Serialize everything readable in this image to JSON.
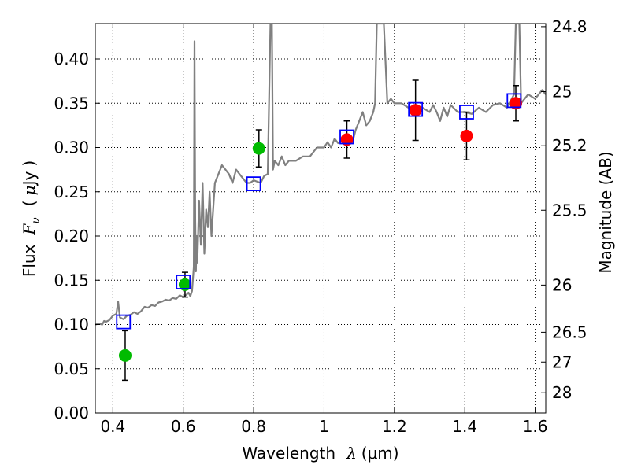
{
  "chart_data": {
    "type": "scatter",
    "xlabel": "Wavelength λ (μm)",
    "xlabel_parts": {
      "text": "Wavelength",
      "symbol": "λ",
      "unit": "(μm)"
    },
    "ylabel": "Flux F_ν (μJy)",
    "ylabel_parts": {
      "text": "Flux",
      "symbol": "F",
      "subscript": "ν",
      "unit_open": "(",
      "unit_mu": "μ",
      "unit_rest": "Jy",
      "unit_close": ")"
    },
    "y2label": "Magnitude (AB)",
    "xlim": [
      0.35,
      1.63
    ],
    "ylim": [
      0.0,
      0.44
    ],
    "grid": true,
    "grid_style": "dotted",
    "x_ticks": [
      {
        "value": 0.4,
        "label": "0.4"
      },
      {
        "value": 0.6,
        "label": "0.6"
      },
      {
        "value": 0.8,
        "label": "0.8"
      },
      {
        "value": 1.0,
        "label": "1"
      },
      {
        "value": 1.2,
        "label": "1.2"
      },
      {
        "value": 1.4,
        "label": "1.4"
      },
      {
        "value": 1.6,
        "label": "1.6"
      }
    ],
    "y_ticks": [
      {
        "value": 0.0,
        "label": "0.00"
      },
      {
        "value": 0.05,
        "label": "0.05"
      },
      {
        "value": 0.1,
        "label": "0.10"
      },
      {
        "value": 0.15,
        "label": "0.15"
      },
      {
        "value": 0.2,
        "label": "0.20"
      },
      {
        "value": 0.25,
        "label": "0.25"
      },
      {
        "value": 0.3,
        "label": "0.30"
      },
      {
        "value": 0.35,
        "label": "0.35"
      },
      {
        "value": 0.4,
        "label": "0.40"
      }
    ],
    "y2_ticks": [
      {
        "mag": 24.8,
        "label": "24.8"
      },
      {
        "mag": 25.0,
        "label": "25"
      },
      {
        "mag": 25.2,
        "label": "25.2"
      },
      {
        "mag": 25.5,
        "label": "25.5"
      },
      {
        "mag": 26.0,
        "label": "26"
      },
      {
        "mag": 26.5,
        "label": "26.5"
      },
      {
        "mag": 27.0,
        "label": "27"
      },
      {
        "mag": 28.0,
        "label": "28"
      }
    ],
    "model_spectrum": {
      "color": "#808080",
      "x": [
        0.35,
        0.36,
        0.37,
        0.375,
        0.38,
        0.39,
        0.4,
        0.41,
        0.415,
        0.42,
        0.43,
        0.44,
        0.45,
        0.46,
        0.47,
        0.48,
        0.49,
        0.5,
        0.51,
        0.52,
        0.53,
        0.54,
        0.55,
        0.56,
        0.57,
        0.58,
        0.59,
        0.6,
        0.61,
        0.615,
        0.62,
        0.625,
        0.63,
        0.632,
        0.634,
        0.636,
        0.638,
        0.64,
        0.645,
        0.65,
        0.655,
        0.66,
        0.665,
        0.67,
        0.675,
        0.68,
        0.685,
        0.69,
        0.7,
        0.71,
        0.72,
        0.73,
        0.74,
        0.75,
        0.76,
        0.77,
        0.78,
        0.79,
        0.8,
        0.82,
        0.83,
        0.84,
        0.848,
        0.85,
        0.852,
        0.855,
        0.86,
        0.87,
        0.88,
        0.89,
        0.9,
        0.92,
        0.94,
        0.96,
        0.98,
        1.0,
        1.01,
        1.02,
        1.03,
        1.04,
        1.06,
        1.08,
        1.09,
        1.1,
        1.11,
        1.12,
        1.13,
        1.14,
        1.145,
        1.15,
        1.16,
        1.17,
        1.18,
        1.19,
        1.2,
        1.22,
        1.24,
        1.26,
        1.28,
        1.3,
        1.31,
        1.32,
        1.33,
        1.34,
        1.35,
        1.36,
        1.38,
        1.4,
        1.42,
        1.44,
        1.46,
        1.48,
        1.5,
        1.52,
        1.54,
        1.545,
        1.55,
        1.555,
        1.56,
        1.57,
        1.58,
        1.6,
        1.62,
        1.63
      ],
      "y": [
        0.1,
        0.101,
        0.1,
        0.104,
        0.103,
        0.105,
        0.11,
        0.112,
        0.126,
        0.108,
        0.106,
        0.11,
        0.111,
        0.114,
        0.112,
        0.115,
        0.12,
        0.119,
        0.122,
        0.121,
        0.125,
        0.126,
        0.128,
        0.127,
        0.13,
        0.129,
        0.133,
        0.131,
        0.134,
        0.136,
        0.132,
        0.138,
        0.165,
        0.42,
        0.22,
        0.16,
        0.2,
        0.17,
        0.24,
        0.19,
        0.26,
        0.18,
        0.23,
        0.21,
        0.25,
        0.2,
        0.23,
        0.26,
        0.27,
        0.28,
        0.275,
        0.27,
        0.26,
        0.275,
        0.27,
        0.265,
        0.26,
        0.26,
        0.263,
        0.26,
        0.268,
        0.27,
        0.44,
        0.44,
        0.44,
        0.275,
        0.285,
        0.28,
        0.29,
        0.28,
        0.285,
        0.285,
        0.29,
        0.29,
        0.3,
        0.3,
        0.306,
        0.3,
        0.31,
        0.305,
        0.312,
        0.305,
        0.32,
        0.33,
        0.34,
        0.325,
        0.33,
        0.34,
        0.35,
        0.44,
        0.44,
        0.44,
        0.35,
        0.355,
        0.35,
        0.35,
        0.345,
        0.348,
        0.345,
        0.34,
        0.348,
        0.34,
        0.33,
        0.345,
        0.335,
        0.348,
        0.34,
        0.34,
        0.338,
        0.345,
        0.34,
        0.348,
        0.35,
        0.345,
        0.36,
        0.44,
        0.44,
        0.44,
        0.35,
        0.355,
        0.36,
        0.355,
        0.365,
        0.36
      ]
    },
    "series": [
      {
        "marker": "circle",
        "color": "#00bb00",
        "x": [
          0.435,
          0.605,
          0.815
        ],
        "y": [
          0.065,
          0.145,
          0.299
        ],
        "yerr": [
          0.028,
          0.014,
          0.021
        ]
      },
      {
        "marker": "circle",
        "color": "#ff0000",
        "x": [
          1.065,
          1.26,
          1.405,
          1.545
        ],
        "y": [
          0.309,
          0.342,
          0.313,
          0.35
        ],
        "yerr": [
          0.021,
          0.034,
          0.027,
          0.02
        ]
      },
      {
        "marker": "square-open",
        "color": "#0000ff",
        "x": [
          0.43,
          0.6,
          0.8,
          1.065,
          1.26,
          1.405,
          1.54
        ],
        "y": [
          0.103,
          0.148,
          0.259,
          0.312,
          0.343,
          0.34,
          0.353
        ]
      }
    ]
  }
}
